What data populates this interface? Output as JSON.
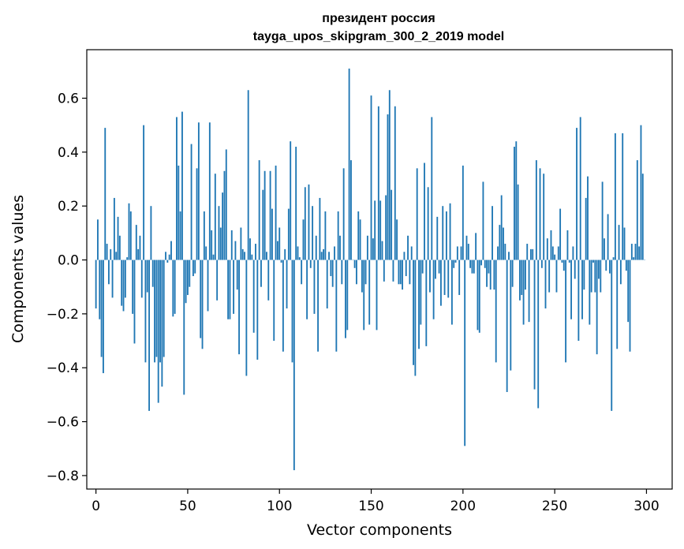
{
  "chart_data": {
    "type": "bar",
    "title_line1": "президент россия",
    "title_line2": "tayga_upos_skipgram_300_2_2019 model",
    "xlabel": "Vector components",
    "ylabel": "Components values",
    "xlim": [
      -5,
      314
    ],
    "ylim": [
      -0.85,
      0.78
    ],
    "xticks": [
      0,
      50,
      100,
      150,
      200,
      250,
      300
    ],
    "xtick_labels": [
      "0",
      "50",
      "100",
      "150",
      "200",
      "250",
      "300"
    ],
    "yticks": [
      -0.8,
      -0.6,
      -0.4,
      -0.2,
      0.0,
      0.2,
      0.4,
      0.6
    ],
    "ytick_labels": [
      "−0.8",
      "−0.6",
      "−0.4",
      "−0.2",
      "0.0",
      "0.2",
      "0.4",
      "0.6"
    ],
    "bar_color": "#1f77b4",
    "values": [
      -0.18,
      0.15,
      -0.22,
      -0.36,
      -0.42,
      0.49,
      0.06,
      -0.09,
      0.04,
      -0.14,
      0.23,
      0.03,
      0.16,
      0.09,
      -0.17,
      -0.19,
      -0.14,
      0.01,
      0.21,
      0.18,
      -0.2,
      -0.31,
      0.13,
      0.04,
      0.09,
      -0.14,
      0.5,
      -0.38,
      -0.12,
      -0.56,
      0.2,
      -0.1,
      -0.38,
      -0.36,
      -0.53,
      -0.38,
      -0.47,
      -0.36,
      0.03,
      -0.01,
      0.02,
      0.07,
      -0.21,
      -0.2,
      0.53,
      0.35,
      0.18,
      0.55,
      -0.5,
      -0.16,
      -0.13,
      -0.1,
      0.43,
      -0.06,
      -0.05,
      0.34,
      0.51,
      -0.29,
      -0.33,
      0.18,
      0.05,
      -0.19,
      0.51,
      0.11,
      0.02,
      0.32,
      -0.15,
      0.2,
      0.12,
      0.25,
      0.33,
      0.41,
      -0.22,
      -0.22,
      0.11,
      -0.2,
      0.07,
      -0.11,
      -0.35,
      0.12,
      0.04,
      0.03,
      -0.43,
      0.63,
      0.08,
      0.02,
      -0.27,
      0.06,
      -0.37,
      0.37,
      -0.1,
      0.26,
      0.33,
      0.03,
      -0.15,
      0.33,
      0.19,
      -0.3,
      0.35,
      0.07,
      0.12,
      -0.01,
      -0.34,
      0.04,
      -0.18,
      0.19,
      0.44,
      -0.38,
      -0.78,
      0.42,
      0.05,
      0.01,
      -0.09,
      0.15,
      0.27,
      -0.22,
      0.28,
      -0.03,
      0.2,
      -0.2,
      0.09,
      -0.34,
      0.23,
      0.03,
      0.04,
      0.18,
      -0.18,
      0.03,
      -0.06,
      -0.1,
      0.05,
      -0.34,
      0.18,
      0.09,
      -0.09,
      0.34,
      -0.29,
      -0.26,
      0.71,
      0.37,
      0.0,
      -0.03,
      -0.09,
      0.18,
      0.15,
      -0.12,
      -0.26,
      -0.09,
      0.09,
      -0.24,
      0.61,
      0.08,
      0.22,
      -0.26,
      0.57,
      0.22,
      0.07,
      -0.08,
      0.24,
      0.54,
      0.63,
      0.26,
      -0.08,
      0.57,
      0.15,
      -0.09,
      -0.09,
      -0.11,
      0.03,
      -0.06,
      0.09,
      -0.09,
      0.05,
      -0.39,
      -0.43,
      0.34,
      -0.33,
      -0.24,
      -0.05,
      0.36,
      -0.32,
      0.27,
      -0.12,
      0.53,
      -0.22,
      -0.07,
      0.16,
      -0.05,
      -0.17,
      0.2,
      -0.13,
      0.18,
      -0.14,
      0.21,
      -0.24,
      -0.03,
      -0.01,
      0.05,
      -0.13,
      0.05,
      0.35,
      -0.69,
      0.09,
      0.06,
      -0.03,
      -0.05,
      -0.05,
      0.1,
      -0.26,
      -0.27,
      -0.02,
      0.29,
      -0.03,
      -0.1,
      -0.05,
      -0.11,
      0.2,
      -0.11,
      -0.38,
      0.05,
      0.13,
      0.24,
      0.12,
      0.06,
      -0.49,
      0.03,
      -0.41,
      -0.1,
      0.42,
      0.44,
      0.28,
      -0.15,
      -0.13,
      -0.24,
      -0.11,
      0.06,
      -0.23,
      0.04,
      0.04,
      -0.48,
      0.37,
      -0.55,
      0.34,
      -0.03,
      0.32,
      -0.18,
      0.08,
      -0.12,
      0.11,
      0.05,
      0.02,
      -0.12,
      0.05,
      0.19,
      -0.01,
      -0.04,
      -0.38,
      0.11,
      -0.01,
      -0.22,
      0.05,
      -0.07,
      0.49,
      -0.3,
      0.53,
      -0.22,
      -0.11,
      0.23,
      0.31,
      -0.24,
      -0.12,
      -0.01,
      -0.12,
      -0.35,
      -0.07,
      -0.12,
      0.29,
      0.08,
      -0.04,
      0.17,
      -0.05,
      -0.56,
      0.01,
      0.47,
      -0.33,
      0.13,
      -0.09,
      0.47,
      0.12,
      -0.04,
      -0.23,
      -0.34,
      0.06,
      0.01,
      0.06,
      0.37,
      0.05,
      0.5,
      0.32,
      0.0
    ]
  }
}
